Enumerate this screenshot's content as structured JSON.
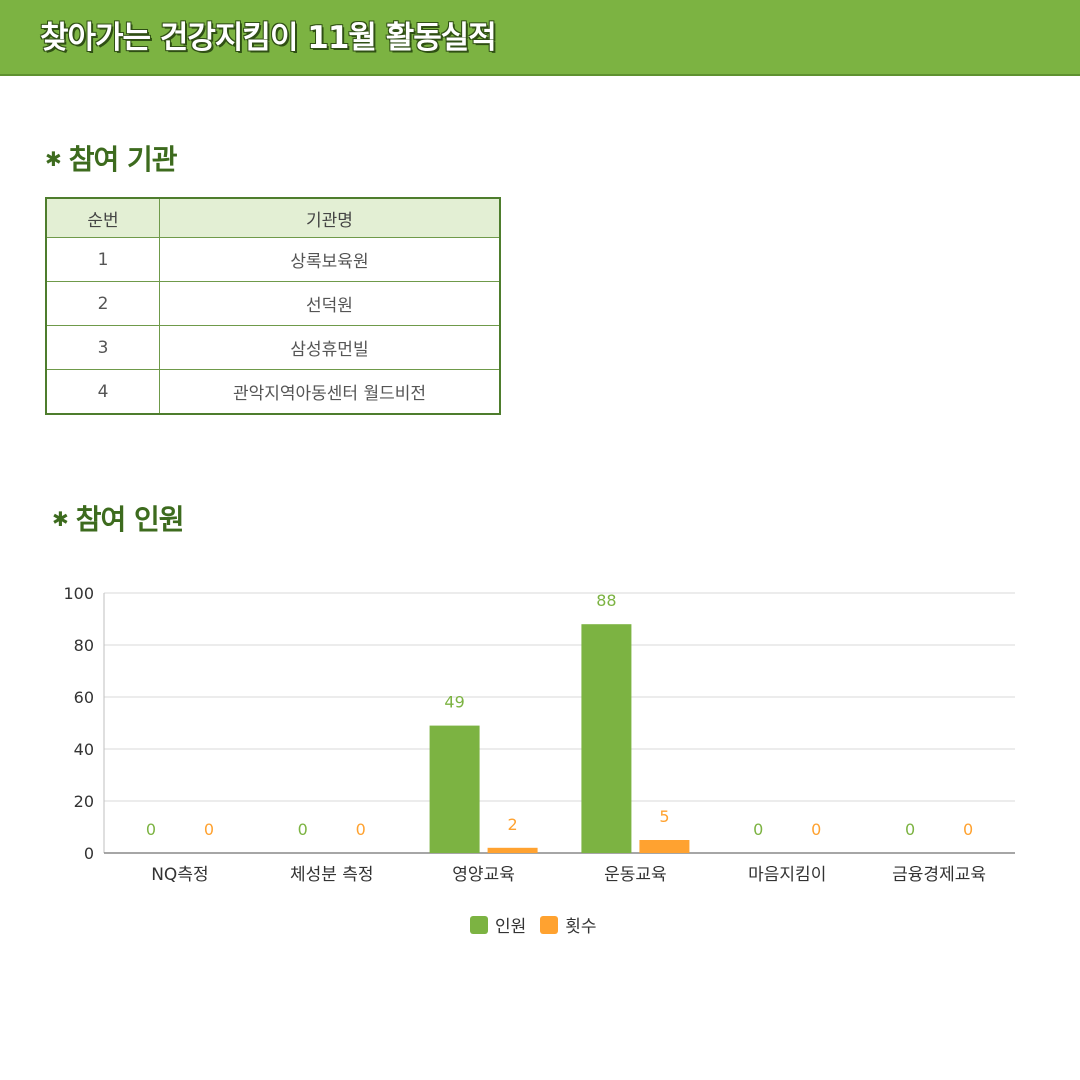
{
  "header": {
    "title": "찾아가는 건강지킴이 11월 활동실적"
  },
  "section_org": {
    "bullet": "✱",
    "title": "참여 기관"
  },
  "org_table": {
    "headers": [
      "순번",
      "기관명"
    ],
    "rows": [
      [
        "1",
        "상록보육원"
      ],
      [
        "2",
        "선덕원"
      ],
      [
        "3",
        "삼성휴먼빌"
      ],
      [
        "4",
        "관악지역아동센터 월드비전"
      ]
    ]
  },
  "section_people": {
    "bullet": "✱",
    "title": "참여 인원"
  },
  "colors": {
    "green": "#7cb342",
    "orange": "#ffa230",
    "header_bg": "#7cb342"
  },
  "chart_data": {
    "type": "bar",
    "categories": [
      "NQ측정",
      "체성분 측정",
      "영양교육",
      "운동교육",
      "마음지킴이",
      "금융경제교육"
    ],
    "series": [
      {
        "name": "인원",
        "color": "#7cb342",
        "values": [
          0,
          0,
          49,
          88,
          0,
          0
        ]
      },
      {
        "name": "횟수",
        "color": "#ffa230",
        "values": [
          0,
          0,
          2,
          5,
          0,
          0
        ]
      }
    ],
    "ylim": [
      0,
      100
    ],
    "yticks": [
      0,
      20,
      40,
      60,
      80,
      100
    ],
    "grid": true,
    "legend": "bottom"
  }
}
